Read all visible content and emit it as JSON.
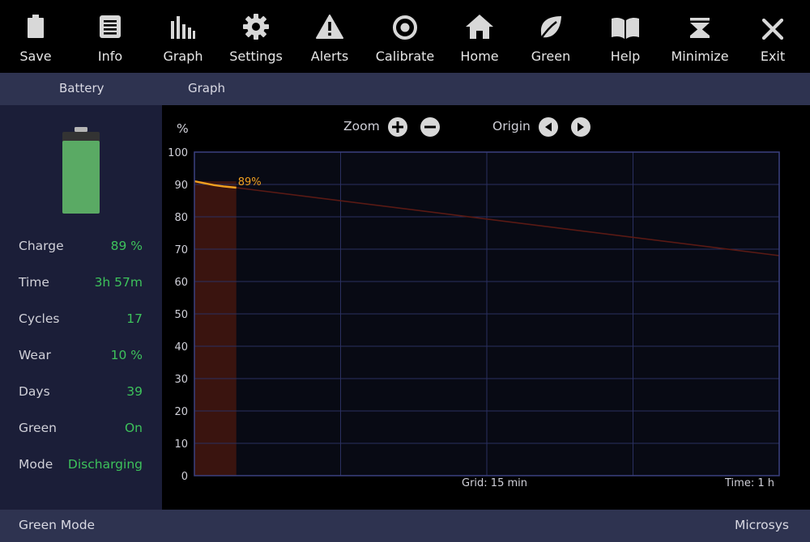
{
  "toolbar": {
    "items": [
      {
        "label": "Save",
        "icon": "battery-icon"
      },
      {
        "label": "Info",
        "icon": "document-icon"
      },
      {
        "label": "Graph",
        "icon": "bar-graph-icon"
      },
      {
        "label": "Settings",
        "icon": "gear-icon"
      },
      {
        "label": "Alerts",
        "icon": "warning-icon"
      },
      {
        "label": "Calibrate",
        "icon": "target-icon"
      },
      {
        "label": "Home",
        "icon": "home-icon"
      },
      {
        "label": "Green",
        "icon": "leaf-icon"
      },
      {
        "label": "Help",
        "icon": "book-icon"
      },
      {
        "label": "Minimize",
        "icon": "minimize-icon"
      },
      {
        "label": "Exit",
        "icon": "close-icon"
      }
    ]
  },
  "tabs": [
    {
      "label": "Battery"
    },
    {
      "label": "Graph"
    }
  ],
  "sidebar": {
    "battery_level": 0.89,
    "stats": [
      {
        "label": "Charge",
        "value": "89 %"
      },
      {
        "label": "Time",
        "value": "3h 57m"
      },
      {
        "label": "Cycles",
        "value": "17"
      },
      {
        "label": "Wear",
        "value": "10 %"
      },
      {
        "label": "Days",
        "value": "39"
      },
      {
        "label": "Green",
        "value": "On"
      },
      {
        "label": "Mode",
        "value": "Discharging"
      }
    ]
  },
  "graph": {
    "unit_label": "%",
    "zoom_label": "Zoom",
    "origin_label": "Origin",
    "grid_label": "Grid: 15 min",
    "time_label": "Time: 1 h",
    "current_label": "89%"
  },
  "chart_data": {
    "type": "line",
    "ylabel": "%",
    "ylim": [
      0,
      100
    ],
    "yticks": [
      "0",
      "10",
      "20",
      "30",
      "40",
      "50",
      "60",
      "70",
      "80",
      "90",
      "100"
    ],
    "xlim_minutes": [
      0,
      60
    ],
    "grid_minutes": 15,
    "series": [
      {
        "x": [
          0,
          1,
          2,
          3,
          4.3
        ],
        "y": [
          91,
          90.4,
          89.8,
          89.4,
          89.0
        ]
      }
    ],
    "projection": {
      "x": [
        4.3,
        60
      ],
      "y": [
        89.0,
        68.0
      ]
    },
    "elapsed_minutes": 4.3,
    "colors": {
      "series": "#f0a020",
      "projection": "#5a1a14",
      "elapsed_fill": "#3a140f",
      "grid": "#2a3060"
    }
  },
  "statusbar": {
    "left": "Green Mode",
    "right": "Microsys"
  },
  "colors": {
    "accent_green": "#3dc25b",
    "panel": "#1b1e38",
    "bar": "#2e3350"
  }
}
